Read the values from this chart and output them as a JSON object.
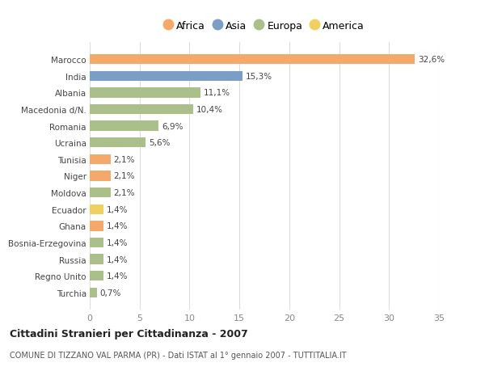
{
  "countries": [
    "Marocco",
    "India",
    "Albania",
    "Macedonia d/N.",
    "Romania",
    "Ucraina",
    "Tunisia",
    "Niger",
    "Moldova",
    "Ecuador",
    "Ghana",
    "Bosnia-Erzegovina",
    "Russia",
    "Regno Unito",
    "Turchia"
  ],
  "values": [
    32.6,
    15.3,
    11.1,
    10.4,
    6.9,
    5.6,
    2.1,
    2.1,
    2.1,
    1.4,
    1.4,
    1.4,
    1.4,
    1.4,
    0.7
  ],
  "labels": [
    "32,6%",
    "15,3%",
    "11,1%",
    "10,4%",
    "6,9%",
    "5,6%",
    "2,1%",
    "2,1%",
    "2,1%",
    "1,4%",
    "1,4%",
    "1,4%",
    "1,4%",
    "1,4%",
    "0,7%"
  ],
  "continents": [
    "Africa",
    "Asia",
    "Europa",
    "Europa",
    "Europa",
    "Europa",
    "Africa",
    "Africa",
    "Europa",
    "America",
    "Africa",
    "Europa",
    "Europa",
    "Europa",
    "Europa"
  ],
  "continent_colors": {
    "Africa": "#F4A96A",
    "Asia": "#7B9EC5",
    "Europa": "#AABF8A",
    "America": "#F0D060"
  },
  "legend_order": [
    "Africa",
    "Asia",
    "Europa",
    "America"
  ],
  "title1": "Cittadini Stranieri per Cittadinanza - 2007",
  "title2": "COMUNE DI TIZZANO VAL PARMA (PR) - Dati ISTAT al 1° gennaio 2007 - TUTTITALIA.IT",
  "xlim": [
    0,
    35
  ],
  "xticks": [
    0,
    5,
    10,
    15,
    20,
    25,
    30,
    35
  ],
  "background_color": "#ffffff",
  "grid_color": "#dddddd",
  "bar_height": 0.6
}
